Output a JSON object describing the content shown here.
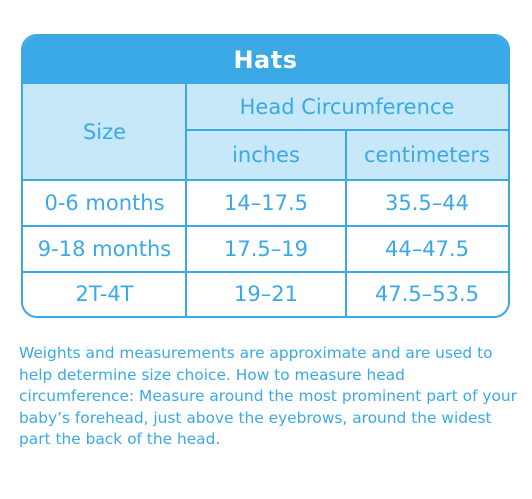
{
  "title": "Hats",
  "header": {
    "size": "Size",
    "group": "Head Circumference",
    "inches": "inches",
    "centimeters": "centimeters"
  },
  "rows": [
    {
      "size": "0-6 months",
      "inches": "14–17.5",
      "cm": "35.5–44"
    },
    {
      "size": "9-18 months",
      "inches": "17.5–19",
      "cm": "44–47.5"
    },
    {
      "size": "2T-4T",
      "inches": "19–21",
      "cm": "47.5–53.5"
    }
  ],
  "note": "Weights and measurements are approximate and are used to help determine size choice. How to measure head circumference: Measure around the most prominent part of your baby’s forehead, just above the eyebrows, around the widest part the back of the head.",
  "colors": {
    "accent": "#3aa9e6",
    "header_fill": "#c6e8f8"
  }
}
